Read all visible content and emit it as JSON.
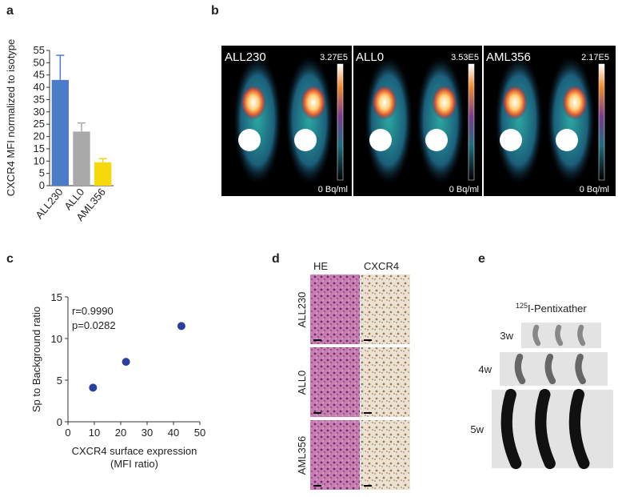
{
  "chart_data": [
    {
      "type": "bar",
      "panel": "a",
      "y_label": "CXCR4 MFI normalized to isotype",
      "categories": [
        "ALL230",
        "ALL0",
        "AML356"
      ],
      "values": [
        43,
        22,
        9.5
      ],
      "errors": [
        10,
        3.5,
        1.5
      ],
      "colors": [
        "#4a7cc7",
        "#a9a9a9",
        "#f5d90a"
      ],
      "ylim": [
        0,
        55
      ],
      "yticks": [
        0,
        5,
        10,
        15,
        20,
        25,
        30,
        35,
        40,
        45,
        50,
        55
      ]
    },
    {
      "type": "scatter",
      "panel": "c",
      "x_label": [
        "CXCR4 surface expression",
        "(MFI ratio)"
      ],
      "y_label": "Sp to Background ratio",
      "annotations": [
        "r=0.9990",
        "p=0.0282"
      ],
      "x": [
        9.5,
        22,
        43
      ],
      "values": [
        4.1,
        7.2,
        11.5
      ],
      "color": "#2b3f9e",
      "xlim": [
        0,
        50
      ],
      "xticks": [
        0,
        10,
        20,
        30,
        40,
        50
      ],
      "ylim": [
        0,
        15
      ],
      "yticks": [
        0,
        5,
        10,
        15
      ]
    }
  ],
  "panel_b": {
    "letter": "b",
    "images": [
      {
        "label": "ALL230",
        "max": "3.27E5",
        "min": "0 Bq/ml"
      },
      {
        "label": "ALL0",
        "max": "3.53E5",
        "min": "0 Bq/ml"
      },
      {
        "label": "AML356",
        "max": "2.17E5",
        "min": "0 Bq/ml"
      }
    ]
  },
  "panel_d": {
    "letter": "d",
    "columns": [
      "HE",
      "CXCR4"
    ],
    "rows": [
      "ALL230",
      "ALL0",
      "AML356"
    ]
  },
  "panel_e": {
    "letter": "e",
    "title_sup": "125",
    "title": "I-Pentixather",
    "rows": [
      "3w",
      "4w",
      "5w"
    ]
  }
}
